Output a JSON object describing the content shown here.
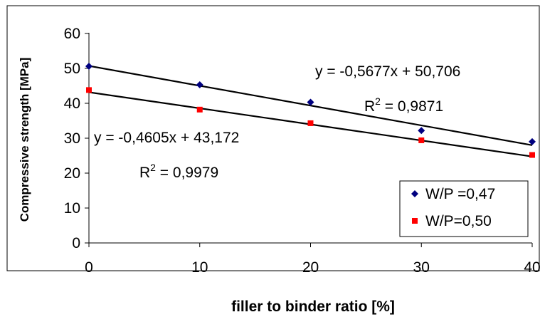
{
  "chart_data": {
    "type": "scatter",
    "title": "",
    "xlabel": "filler to binder ratio [%]",
    "ylabel": "Compressive strength [MPa]",
    "xlim": [
      0,
      40
    ],
    "ylim": [
      0,
      60
    ],
    "x_ticks": [
      "0",
      "10",
      "20",
      "30",
      "40"
    ],
    "y_ticks": [
      "0",
      "10",
      "20",
      "30",
      "40",
      "50",
      "60"
    ],
    "grid": false,
    "legend_position": "bottom-right",
    "series": [
      {
        "name": "W/P =0,47",
        "marker": "diamond",
        "color": "#000080",
        "x": [
          0,
          10,
          20,
          30,
          40
        ],
        "y": [
          50.6,
          45.3,
          40.3,
          32.2,
          29.0
        ],
        "trendline": {
          "slope": -0.5677,
          "intercept": 50.706
        },
        "equation_label": "y = -0,5677x + 50,706",
        "r2_prefix": "R",
        "r2_exp": "2",
        "r2_suffix": " = 0,9871"
      },
      {
        "name": "W/P=0,50",
        "marker": "square",
        "color": "#ff0000",
        "x": [
          0,
          10,
          20,
          30,
          40
        ],
        "y": [
          43.8,
          38.2,
          34.3,
          29.4,
          25.2
        ],
        "trendline": {
          "slope": -0.4605,
          "intercept": 43.172
        },
        "equation_label": "y = -0,4605x + 43,172",
        "r2_prefix": "R",
        "r2_exp": "2",
        "r2_suffix": " = 0,9979"
      }
    ]
  }
}
